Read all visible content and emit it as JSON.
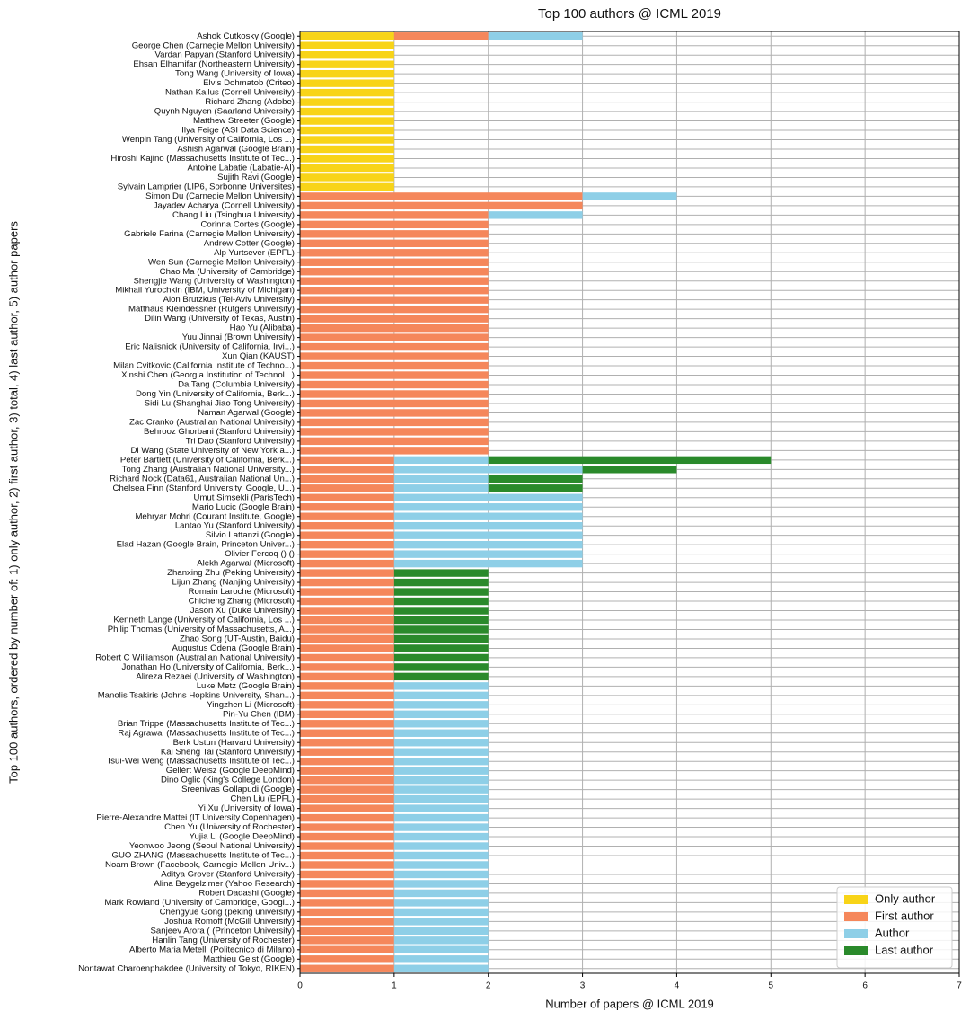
{
  "chart_data": {
    "type": "stacked-barh",
    "title": "Top 100 authors @ ICML 2019",
    "x_label": "Number of papers @ ICML 2019",
    "y_label": "Top 100 authors, ordered by number of: 1) only author, 2) first author, 3) total, 4) last author, 5) author papers",
    "categories": [
      "Ashok Cutkosky (Google)",
      "George Chen (Carnegie Mellon University)",
      "Vardan Papyan (Stanford University)",
      "Ehsan Elhamifar (Northeastern University)",
      "Tong Wang (University of Iowa)",
      "Elvis Dohmatob (Criteo)",
      "Nathan Kallus (Cornell University)",
      "Richard Zhang (Adobe)",
      "Quynh Nguyen (Saarland University)",
      "Matthew Streeter (Google)",
      "Ilya Feige (ASI Data Science)",
      "Wenpin Tang (University of California, Los ...)",
      "Ashish Agarwal (Google Brain)",
      "Hiroshi Kajino (Massachusetts Institute of Tec...)",
      "Antoine Labatie (Labatie-AI)",
      "Sujith Ravi (Google)",
      "Sylvain Lamprier (LIP6, Sorbonne Universites)",
      "Simon Du (Carnegie Mellon University)",
      "Jayadev Acharya (Cornell University)",
      "Chang Liu (Tsinghua University)",
      "Corinna Cortes (Google)",
      "Gabriele Farina (Carnegie Mellon University)",
      "Andrew Cotter (Google)",
      "Alp Yurtsever (EPFL)",
      "Wen Sun (Carnegie Mellon University)",
      "Chao Ma (University of Cambridge)",
      "Shengjie Wang (University of Washington)",
      "Mikhail Yurochkin (IBM, University of Michigan)",
      "Alon Brutzkus (Tel-Aviv University)",
      "Matthäus Kleindessner (Rutgers University)",
      "Dilin Wang (University of Texas, Austin)",
      "Hao Yu (Alibaba)",
      "Yuu Jinnai (Brown University)",
      "Eric Nalisnick (University of California, Irvi...)",
      "Xun Qian (KAUST)",
      "Milan Cvitkovic (California Institute of Techno...)",
      "Xinshi Chen (Georgia Institution of Technol...)",
      "Da Tang (Columbia University)",
      "Dong Yin (University of California, Berk...)",
      "Sidi Lu (Shanghai Jiao Tong University)",
      "Naman Agarwal (Google)",
      "Zac Cranko (Australian National University)",
      "Behrooz Ghorbani (Stanford University)",
      "Tri Dao (Stanford University)",
      "Di Wang (State University of New York a...)",
      "Peter Bartlett (University of California, Berk...)",
      "Tong Zhang (Australian National University...)",
      "Richard Nock (Data61, Australian National Un...)",
      "Chelsea Finn (Stanford University, Google, U...)",
      "Umut Simsekli (ParisTech)",
      "Mario Lucic (Google Brain)",
      "Mehryar Mohri (Courant Institute, Google)",
      "Lantao Yu (Stanford University)",
      "Silvio Lattanzi (Google)",
      "Elad Hazan (Google Brain, Princeton Univer...)",
      "Olivier Fercoq () ()",
      "Alekh Agarwal (Microsoft)",
      "Zhanxing Zhu (Peking University)",
      "Lijun Zhang (Nanjing University)",
      "Romain Laroche (Microsoft)",
      "Chicheng Zhang (Microsoft)",
      "Jason Xu (Duke University)",
      "Kenneth Lange (University of California, Los ...)",
      "Philip Thomas (University of Massachusetts, A...)",
      "Zhao Song (UT-Austin, Baidu)",
      "Augustus Odena (Google Brain)",
      "Robert C Williamson (Australian National University)",
      "Jonathan Ho (University of California, Berk...)",
      "Alireza Rezaei (University of Washington)",
      "Luke Metz (Google Brain)",
      "Manolis Tsakiris (Johns Hopkins University, Shan...)",
      "Yingzhen Li (Microsoft)",
      "Pin-Yu Chen (IBM)",
      "Brian Trippe (Massachusetts Institute of Tec...)",
      "Raj Agrawal (Massachusetts Institute of Tec...)",
      "Berk Ustun (Harvard University)",
      "Kai Sheng Tai (Stanford University)",
      "Tsui-Wei Weng (Massachusetts Institute of Tec...)",
      "Gellért Weisz (Google DeepMind)",
      "Dino Oglic (King's College London)",
      "Sreenivas Gollapudi (Google)",
      "Chen Liu (EPFL)",
      "Yi Xu (University of Iowa)",
      "Pierre-Alexandre Mattei (IT University Copenhagen)",
      "Chen Yu (University of Rochester)",
      "Yujia Li (Google DeepMind)",
      "Yeonwoo Jeong (Seoul National University)",
      "GUO ZHANG (Massachusetts Institute of Tec...)",
      "Noam Brown (Facebook, Carnegie Mellon Univ...)",
      "Aditya Grover (Stanford University)",
      "Alina Beygelzimer (Yahoo Research)",
      "Robert Dadashi (Google)",
      "Mark Rowland (University of Cambridge, Googl...)",
      "Chengyue Gong (peking university)",
      "Joshua Romoff (McGill University)",
      "Sanjeev Arora ( (Princeton University)",
      "Hanlin Tang (University of Rochester)",
      "Alberto Maria Metelli (Politecnico di Milano)",
      "Matthieu Geist (Google)",
      "Nontawat Charoenphakdee (University of Tokyo, RIKEN)"
    ],
    "series": [
      {
        "name": "Only author",
        "color": "#f8d418",
        "values": [
          1,
          1,
          1,
          1,
          1,
          1,
          1,
          1,
          1,
          1,
          1,
          1,
          1,
          1,
          1,
          1,
          1,
          0,
          0,
          0,
          0,
          0,
          0,
          0,
          0,
          0,
          0,
          0,
          0,
          0,
          0,
          0,
          0,
          0,
          0,
          0,
          0,
          0,
          0,
          0,
          0,
          0,
          0,
          0,
          0,
          0,
          0,
          0,
          0,
          0,
          0,
          0,
          0,
          0,
          0,
          0,
          0,
          0,
          0,
          0,
          0,
          0,
          0,
          0,
          0,
          0,
          0,
          0,
          0,
          0,
          0,
          0,
          0,
          0,
          0,
          0,
          0,
          0,
          0,
          0,
          0,
          0,
          0,
          0,
          0,
          0,
          0,
          0,
          0,
          0,
          0,
          0,
          0,
          0,
          0,
          0,
          0,
          0,
          0,
          0
        ]
      },
      {
        "name": "First author",
        "color": "#f5875b",
        "values": [
          1,
          0,
          0,
          0,
          0,
          0,
          0,
          0,
          0,
          0,
          0,
          0,
          0,
          0,
          0,
          0,
          0,
          3,
          3,
          2,
          2,
          2,
          2,
          2,
          2,
          2,
          2,
          2,
          2,
          2,
          2,
          2,
          2,
          2,
          2,
          2,
          2,
          2,
          2,
          2,
          2,
          2,
          2,
          2,
          2,
          1,
          1,
          1,
          1,
          1,
          1,
          1,
          1,
          1,
          1,
          1,
          1,
          1,
          1,
          1,
          1,
          1,
          1,
          1,
          1,
          1,
          1,
          1,
          1,
          1,
          1,
          1,
          1,
          1,
          1,
          1,
          1,
          1,
          1,
          1,
          1,
          1,
          1,
          1,
          1,
          1,
          1,
          1,
          1,
          1,
          1,
          1,
          1,
          1,
          1,
          1,
          1,
          1,
          1,
          1
        ]
      },
      {
        "name": "Author",
        "color": "#8ecfe7",
        "values": [
          1,
          0,
          0,
          0,
          0,
          0,
          0,
          0,
          0,
          0,
          0,
          0,
          0,
          0,
          0,
          0,
          0,
          1,
          0,
          1,
          0,
          0,
          0,
          0,
          0,
          0,
          0,
          0,
          0,
          0,
          0,
          0,
          0,
          0,
          0,
          0,
          0,
          0,
          0,
          0,
          0,
          0,
          0,
          0,
          0,
          1,
          2,
          1,
          1,
          2,
          2,
          2,
          2,
          2,
          2,
          2,
          2,
          0,
          0,
          0,
          0,
          0,
          0,
          0,
          0,
          0,
          0,
          0,
          0,
          1,
          1,
          1,
          1,
          1,
          1,
          1,
          1,
          1,
          1,
          1,
          1,
          1,
          1,
          1,
          1,
          1,
          1,
          1,
          1,
          1,
          1,
          1,
          1,
          1,
          1,
          1,
          1,
          1,
          1,
          1
        ]
      },
      {
        "name": "Last author",
        "color": "#2a8a2b",
        "values": [
          0,
          0,
          0,
          0,
          0,
          0,
          0,
          0,
          0,
          0,
          0,
          0,
          0,
          0,
          0,
          0,
          0,
          0,
          0,
          0,
          0,
          0,
          0,
          0,
          0,
          0,
          0,
          0,
          0,
          0,
          0,
          0,
          0,
          0,
          0,
          0,
          0,
          0,
          0,
          0,
          0,
          0,
          0,
          0,
          0,
          3,
          1,
          1,
          1,
          0,
          0,
          0,
          0,
          0,
          0,
          0,
          0,
          1,
          1,
          1,
          1,
          1,
          1,
          1,
          1,
          1,
          1,
          1,
          1,
          0,
          0,
          0,
          0,
          0,
          0,
          0,
          0,
          0,
          0,
          0,
          0,
          0,
          0,
          0,
          0,
          0,
          0,
          0,
          0,
          0,
          0,
          0,
          0,
          0,
          0,
          0,
          0,
          0,
          0,
          0
        ]
      }
    ],
    "xlim": [
      0,
      7
    ],
    "xticks": [
      0,
      1,
      2,
      3,
      4,
      5,
      6,
      7
    ],
    "grid": true,
    "legend": "lower right"
  }
}
